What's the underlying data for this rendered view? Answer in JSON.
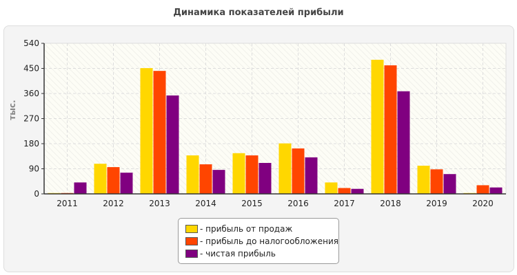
{
  "chart_data": {
    "type": "bar",
    "title": "Динамика показателей прибыли",
    "ylabel": "тыс.",
    "xlabel": "",
    "ylim": [
      0,
      540
    ],
    "yticks": [
      0,
      90,
      180,
      270,
      360,
      450,
      540
    ],
    "grid": true,
    "legend_position": "bottom",
    "categories": [
      "2011",
      "2012",
      "2013",
      "2014",
      "2015",
      "2016",
      "2017",
      "2018",
      "2019",
      "2020"
    ],
    "series": [
      {
        "name": "- прибыль от продаж",
        "color": "#ffd700",
        "values": [
          3,
          108,
          451,
          138,
          146,
          181,
          41,
          481,
          101,
          3
        ]
      },
      {
        "name": "- прибыль до налогообложения",
        "color": "#ff4500",
        "values": [
          3,
          96,
          441,
          106,
          138,
          163,
          21,
          461,
          88,
          31
        ]
      },
      {
        "name": "- чистая прибыль",
        "color": "#800080",
        "values": [
          41,
          76,
          353,
          86,
          111,
          131,
          18,
          368,
          71,
          23
        ]
      }
    ]
  }
}
